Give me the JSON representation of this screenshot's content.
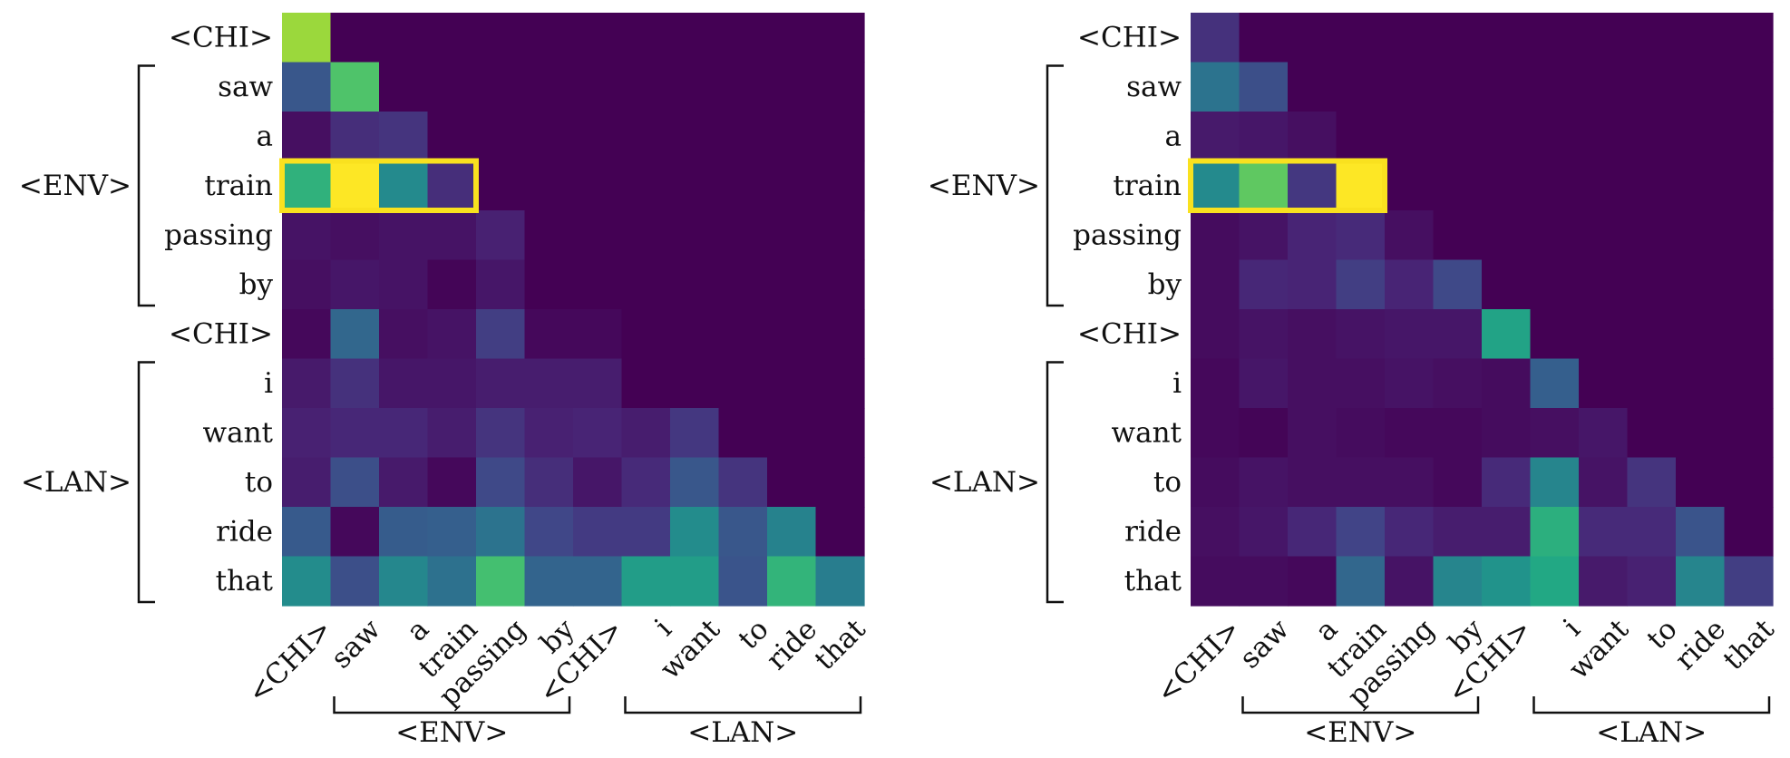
{
  "figure": {
    "description_colormap": "viridis",
    "highlight_color": "#f9e11f"
  },
  "chart_data": [
    {
      "type": "heatmap",
      "title": "",
      "row_labels": [
        "<CHI>",
        "saw",
        "a",
        "train",
        "passing",
        "by",
        "<CHI>",
        "i",
        "want",
        "to",
        "ride",
        "that"
      ],
      "col_labels": [
        "<CHI>",
        "saw",
        "a",
        "train",
        "passing",
        "by",
        "<CHI>",
        "i",
        "want",
        "to",
        "ride",
        "that"
      ],
      "row_groups": [
        {
          "label": "<ENV>",
          "start": 1,
          "end": 5
        },
        {
          "label": "<LAN>",
          "start": 7,
          "end": 11
        }
      ],
      "col_groups": [
        {
          "label": "<ENV>",
          "start": 1,
          "end": 5
        },
        {
          "label": "<LAN>",
          "start": 7,
          "end": 11
        }
      ],
      "highlight_row": 3,
      "highlight_cols": [
        0,
        3
      ],
      "value_range": [
        0,
        1
      ],
      "values": [
        [
          0.85,
          0,
          0,
          0,
          0,
          0,
          0,
          0,
          0,
          0,
          0,
          0
        ],
        [
          0.27,
          0.72,
          0,
          0,
          0,
          0,
          0,
          0,
          0,
          0,
          0,
          0
        ],
        [
          0.04,
          0.13,
          0.15,
          0,
          0,
          0,
          0,
          0,
          0,
          0,
          0,
          0
        ],
        [
          0.64,
          1.0,
          0.47,
          0.13,
          0,
          0,
          0,
          0,
          0,
          0,
          0,
          0
        ],
        [
          0.05,
          0.04,
          0.05,
          0.05,
          0.09,
          0,
          0,
          0,
          0,
          0,
          0,
          0
        ],
        [
          0.04,
          0.06,
          0.05,
          0.01,
          0.06,
          0,
          0,
          0,
          0,
          0,
          0,
          0
        ],
        [
          0.02,
          0.33,
          0.04,
          0.05,
          0.18,
          0.02,
          0.02,
          0,
          0,
          0,
          0,
          0
        ],
        [
          0.07,
          0.14,
          0.06,
          0.06,
          0.08,
          0.08,
          0.08,
          0,
          0,
          0,
          0,
          0
        ],
        [
          0.09,
          0.11,
          0.11,
          0.08,
          0.15,
          0.09,
          0.1,
          0.08,
          0.16,
          0,
          0,
          0
        ],
        [
          0.08,
          0.24,
          0.07,
          0.02,
          0.22,
          0.13,
          0.06,
          0.12,
          0.27,
          0.15,
          0,
          0
        ],
        [
          0.28,
          0.02,
          0.29,
          0.3,
          0.38,
          0.21,
          0.17,
          0.17,
          0.48,
          0.27,
          0.44,
          0
        ],
        [
          0.48,
          0.24,
          0.46,
          0.37,
          0.7,
          0.32,
          0.32,
          0.55,
          0.55,
          0.26,
          0.65,
          0.42
        ]
      ]
    },
    {
      "type": "heatmap",
      "title": "",
      "row_labels": [
        "<CHI>",
        "saw",
        "a",
        "train",
        "passing",
        "by",
        "<CHI>",
        "i",
        "want",
        "to",
        "ride",
        "that"
      ],
      "col_labels": [
        "<CHI>",
        "saw",
        "a",
        "train",
        "passing",
        "by",
        "<CHI>",
        "i",
        "want",
        "to",
        "ride",
        "that"
      ],
      "row_groups": [
        {
          "label": "<ENV>",
          "start": 1,
          "end": 5
        },
        {
          "label": "<LAN>",
          "start": 7,
          "end": 11
        }
      ],
      "col_groups": [
        {
          "label": "<ENV>",
          "start": 1,
          "end": 5
        },
        {
          "label": "<LAN>",
          "start": 7,
          "end": 11
        }
      ],
      "highlight_row": 3,
      "highlight_cols": [
        0,
        3
      ],
      "value_range": [
        0,
        1
      ],
      "values": [
        [
          0.14,
          0,
          0,
          0,
          0,
          0,
          0,
          0,
          0,
          0,
          0,
          0
        ],
        [
          0.38,
          0.24,
          0,
          0,
          0,
          0,
          0,
          0,
          0,
          0,
          0,
          0
        ],
        [
          0.07,
          0.06,
          0.04,
          0,
          0,
          0,
          0,
          0,
          0,
          0,
          0,
          0
        ],
        [
          0.47,
          0.75,
          0.16,
          1.0,
          0,
          0,
          0,
          0,
          0,
          0,
          0,
          0
        ],
        [
          0.03,
          0.05,
          0.1,
          0.12,
          0.04,
          0,
          0,
          0,
          0,
          0,
          0,
          0
        ],
        [
          0.03,
          0.11,
          0.1,
          0.18,
          0.1,
          0.22,
          0,
          0,
          0,
          0,
          0,
          0
        ],
        [
          0.03,
          0.05,
          0.04,
          0.05,
          0.06,
          0.06,
          0.58,
          0,
          0,
          0,
          0,
          0
        ],
        [
          0.02,
          0.06,
          0.04,
          0.04,
          0.05,
          0.04,
          0.03,
          0.3,
          0,
          0,
          0,
          0
        ],
        [
          0.02,
          0.01,
          0.04,
          0.03,
          0.02,
          0.02,
          0.03,
          0.04,
          0.06,
          0,
          0,
          0
        ],
        [
          0.03,
          0.05,
          0.04,
          0.04,
          0.04,
          0.02,
          0.12,
          0.45,
          0.05,
          0.15,
          0,
          0
        ],
        [
          0.04,
          0.06,
          0.11,
          0.2,
          0.11,
          0.08,
          0.08,
          0.63,
          0.12,
          0.12,
          0.26,
          0
        ],
        [
          0.03,
          0.03,
          0.02,
          0.33,
          0.05,
          0.45,
          0.51,
          0.6,
          0.07,
          0.09,
          0.45,
          0.18
        ]
      ]
    }
  ]
}
